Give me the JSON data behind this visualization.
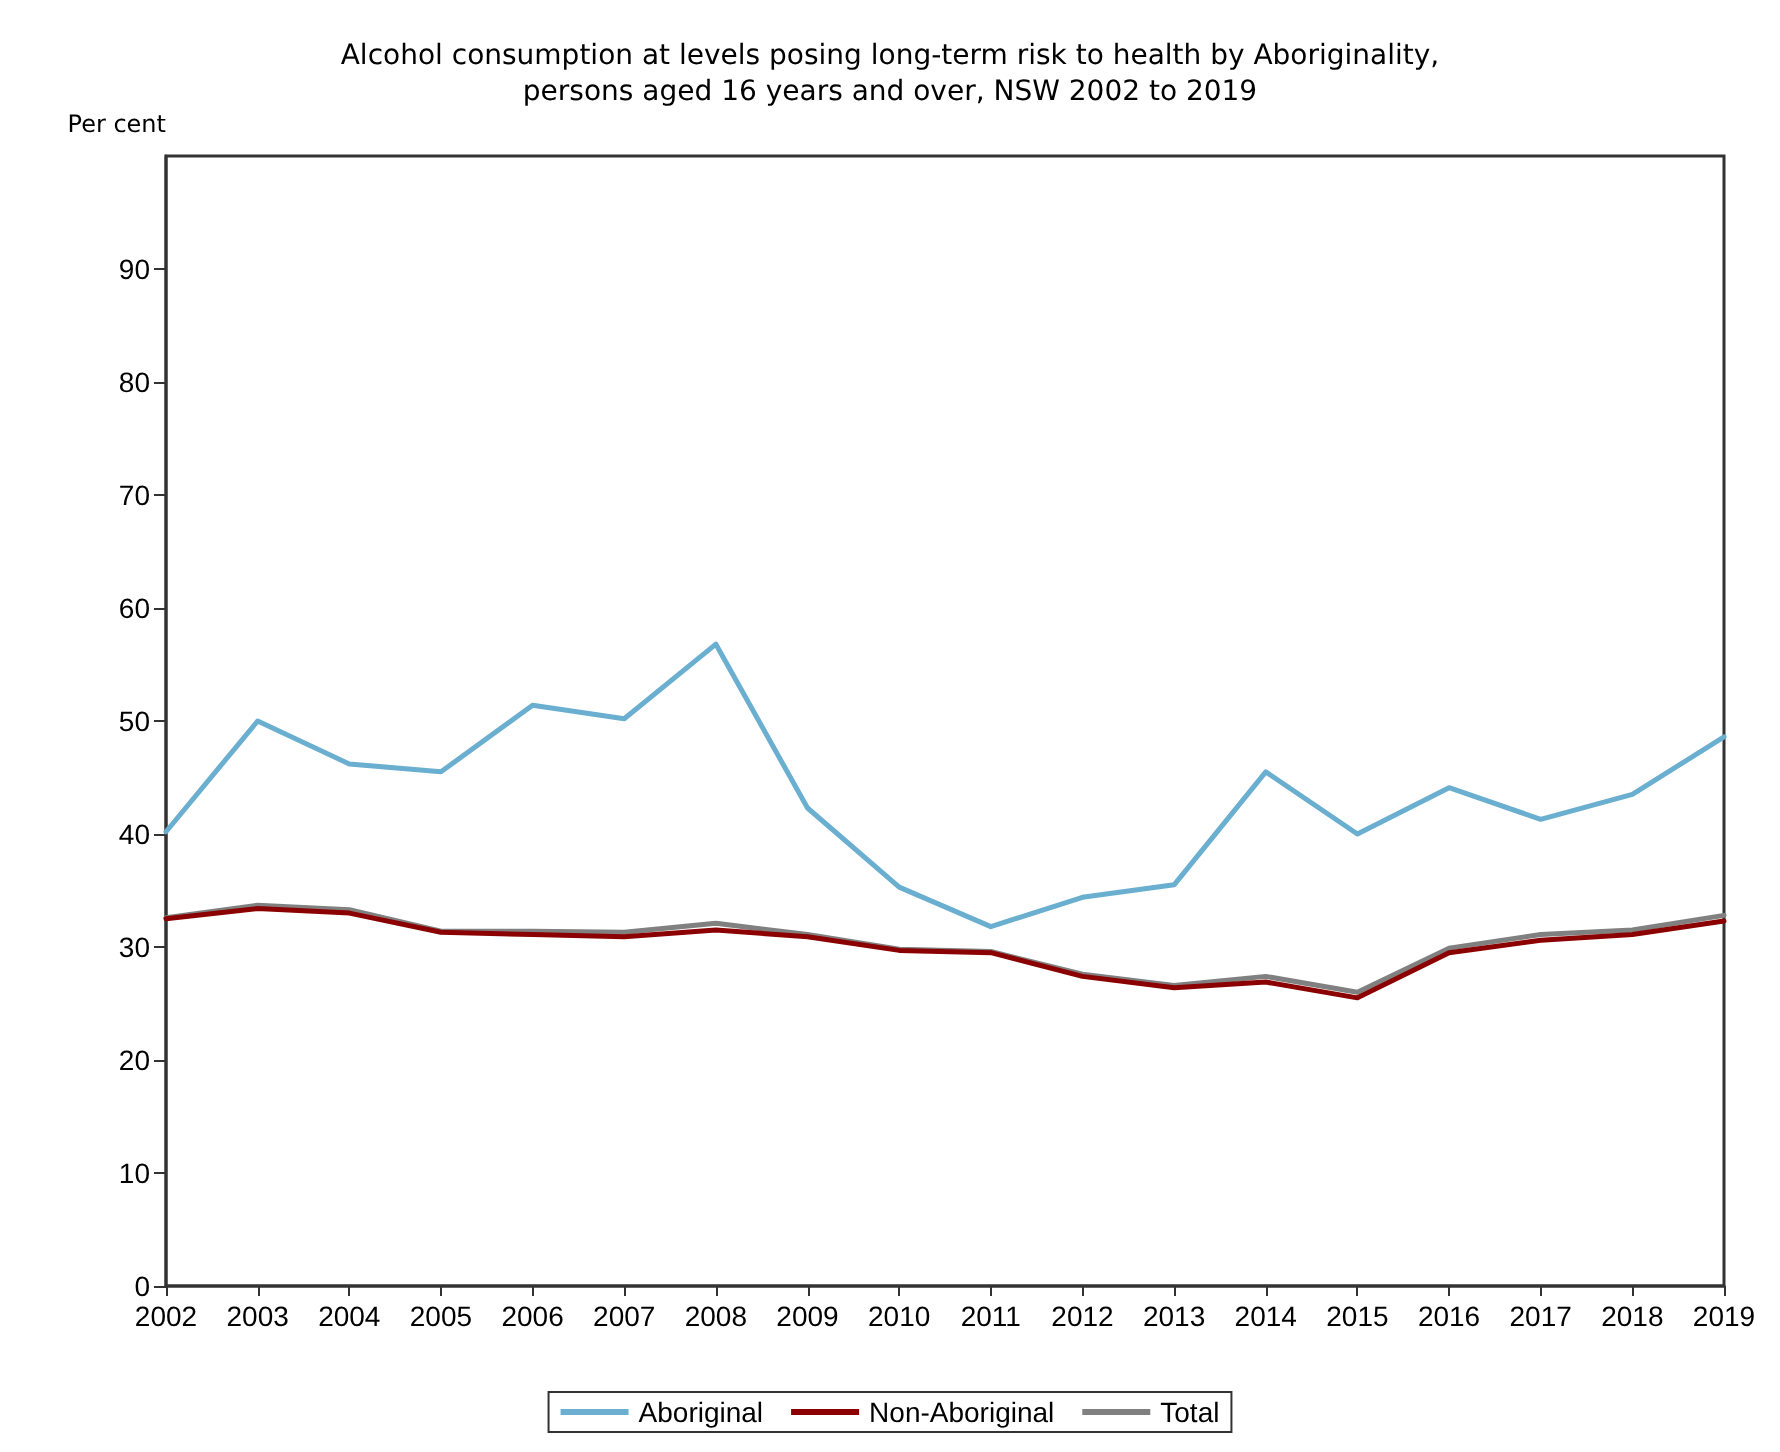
{
  "chart_data": {
    "type": "line",
    "title": "Alcohol consumption at levels posing long-term risk to health by Aboriginality,\npersons aged 16 years and over, NSW 2002 to 2019",
    "ylabel": "Per cent",
    "categories": [
      "2002",
      "2003",
      "2004",
      "2005",
      "2006",
      "2007",
      "2008",
      "2009",
      "2010",
      "2011",
      "2012",
      "2013",
      "2014",
      "2015",
      "2016",
      "2017",
      "2018",
      "2019"
    ],
    "series": [
      {
        "name": "Aboriginal",
        "color": "#6aaed0",
        "values": [
          40.2,
          50.0,
          46.2,
          45.5,
          51.4,
          50.2,
          56.8,
          42.3,
          35.3,
          31.8,
          34.4,
          35.5,
          45.5,
          40.0,
          44.1,
          41.3,
          43.5,
          48.6
        ]
      },
      {
        "name": "Non-Aboriginal",
        "color": "#8b0000",
        "values": [
          32.5,
          33.4,
          33.0,
          31.3,
          31.1,
          30.9,
          31.5,
          30.9,
          29.7,
          29.5,
          27.4,
          26.4,
          26.9,
          25.5,
          29.5,
          30.6,
          31.1,
          32.3
        ]
      },
      {
        "name": "Total",
        "color": "#808080",
        "values": [
          32.6,
          33.7,
          33.3,
          31.4,
          31.4,
          31.3,
          32.1,
          31.1,
          29.8,
          29.6,
          27.6,
          26.6,
          27.4,
          26.0,
          29.9,
          31.1,
          31.5,
          32.8
        ]
      }
    ],
    "ylim": [
      0,
      100
    ],
    "yticks": [
      0,
      10,
      20,
      30,
      40,
      50,
      60,
      70,
      80,
      90
    ],
    "grid": false,
    "legend": "bottom",
    "marker": "none",
    "line_style": "solid"
  }
}
